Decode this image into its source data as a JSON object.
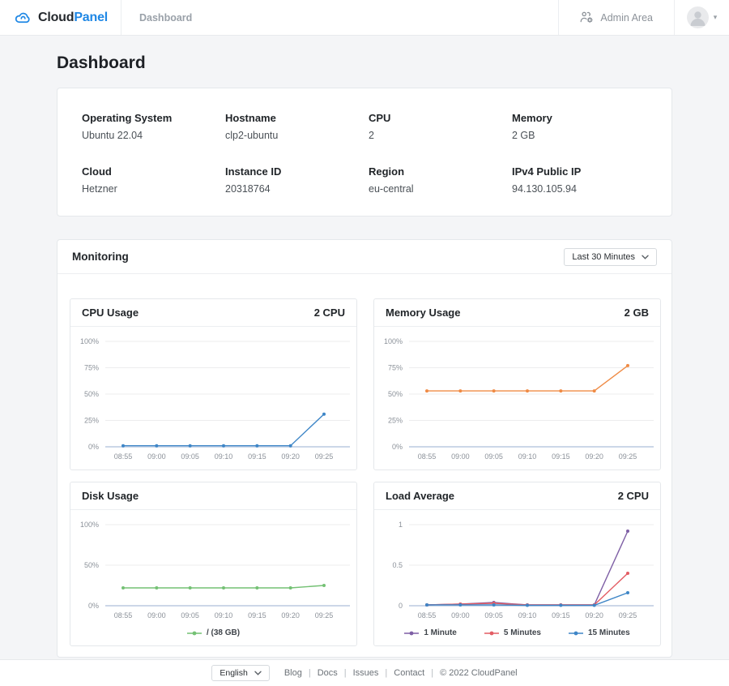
{
  "header": {
    "brand_primary": "Cloud",
    "brand_secondary": "Panel",
    "breadcrumb": "Dashboard",
    "admin_area_label": "Admin Area"
  },
  "page": {
    "title": "Dashboard"
  },
  "server_info": {
    "fields": [
      {
        "label": "Operating System",
        "value": "Ubuntu 22.04"
      },
      {
        "label": "Hostname",
        "value": "clp2-ubuntu"
      },
      {
        "label": "CPU",
        "value": "2"
      },
      {
        "label": "Memory",
        "value": "2 GB"
      },
      {
        "label": "Cloud",
        "value": "Hetzner"
      },
      {
        "label": "Instance ID",
        "value": "20318764"
      },
      {
        "label": "Region",
        "value": "eu-central"
      },
      {
        "label": "IPv4 Public IP",
        "value": "94.130.105.94"
      }
    ]
  },
  "monitoring": {
    "title": "Monitoring",
    "range_selector_value": "Last 30 Minutes"
  },
  "chart_data": [
    {
      "type": "line",
      "title": "CPU Usage",
      "meta": "2 CPU",
      "x": [
        "08:55",
        "09:00",
        "09:05",
        "09:10",
        "09:15",
        "09:20",
        "09:25"
      ],
      "ylim": [
        0,
        100
      ],
      "yticks": [
        {
          "v": 0,
          "label": "0%"
        },
        {
          "v": 25,
          "label": "25%"
        },
        {
          "v": 50,
          "label": "50%"
        },
        {
          "v": 75,
          "label": "75%"
        },
        {
          "v": 100,
          "label": "100%"
        }
      ],
      "grid": true,
      "legend": false,
      "series": [
        {
          "name": "CPU",
          "color": "#3e86c7",
          "values": [
            1,
            1,
            1,
            1,
            1,
            1,
            31
          ]
        }
      ]
    },
    {
      "type": "line",
      "title": "Memory Usage",
      "meta": "2 GB",
      "x": [
        "08:55",
        "09:00",
        "09:05",
        "09:10",
        "09:15",
        "09:20",
        "09:25"
      ],
      "ylim": [
        0,
        100
      ],
      "yticks": [
        {
          "v": 0,
          "label": "0%"
        },
        {
          "v": 25,
          "label": "25%"
        },
        {
          "v": 50,
          "label": "50%"
        },
        {
          "v": 75,
          "label": "75%"
        },
        {
          "v": 100,
          "label": "100%"
        }
      ],
      "grid": true,
      "legend": false,
      "series": [
        {
          "name": "Memory",
          "color": "#ef8b45",
          "values": [
            53,
            53,
            53,
            53,
            53,
            53,
            77
          ]
        }
      ]
    },
    {
      "type": "line",
      "title": "Disk Usage",
      "meta": "",
      "x": [
        "08:55",
        "09:00",
        "09:05",
        "09:10",
        "09:15",
        "09:20",
        "09:25"
      ],
      "ylim": [
        0,
        100
      ],
      "yticks": [
        {
          "v": 0,
          "label": "0%"
        },
        {
          "v": 50,
          "label": "50%"
        },
        {
          "v": 100,
          "label": "100%"
        }
      ],
      "grid": true,
      "legend": true,
      "series": [
        {
          "name": "/ (38 GB)",
          "color": "#74c174",
          "values": [
            22,
            22,
            22,
            22,
            22,
            22,
            25
          ]
        }
      ]
    },
    {
      "type": "line",
      "title": "Load Average",
      "meta": "2 CPU",
      "x": [
        "08:55",
        "09:00",
        "09:05",
        "09:10",
        "09:15",
        "09:20",
        "09:25"
      ],
      "ylim": [
        0,
        1
      ],
      "yticks": [
        {
          "v": 0,
          "label": "0"
        },
        {
          "v": 0.5,
          "label": "0.5"
        },
        {
          "v": 1,
          "label": "1"
        }
      ],
      "grid": true,
      "legend": true,
      "series": [
        {
          "name": "1 Minute",
          "color": "#7e5fa5",
          "values": [
            0.01,
            0.02,
            0.04,
            0.01,
            0.01,
            0.01,
            0.92
          ]
        },
        {
          "name": "5 Minutes",
          "color": "#e35d64",
          "values": [
            0.01,
            0.02,
            0.03,
            0.01,
            0.01,
            0.01,
            0.4
          ]
        },
        {
          "name": "15 Minutes",
          "color": "#3e86c7",
          "values": [
            0.01,
            0.01,
            0.01,
            0.005,
            0.005,
            0.005,
            0.16
          ]
        }
      ]
    }
  ],
  "footer": {
    "language_value": "English",
    "links": [
      "Blog",
      "Docs",
      "Issues",
      "Contact"
    ],
    "copyright": "© 2022  CloudPanel"
  },
  "colors": {
    "brand_blue": "#1e87e5"
  }
}
